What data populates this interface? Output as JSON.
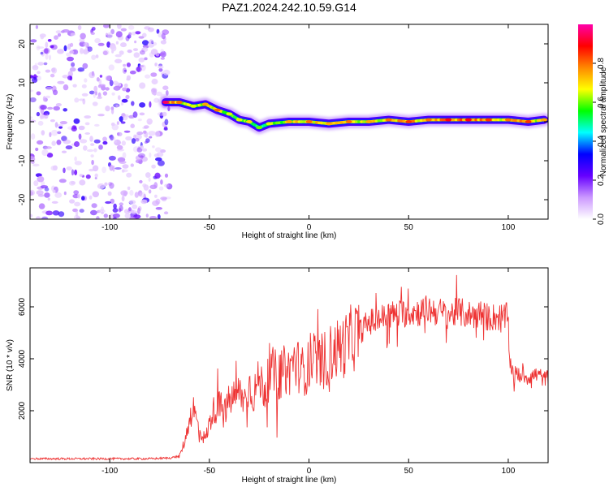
{
  "title": "PAZ1.2024.242.10.59.G14",
  "chart_data": [
    {
      "type": "heatmap",
      "xlabel": "Height of straight line (km)",
      "ylabel": "Frequency (Hz)",
      "xlim": [
        -140,
        120
      ],
      "ylim": [
        -25,
        25
      ],
      "xticks": [
        -100,
        -50,
        0,
        50,
        100
      ],
      "yticks": [
        20,
        10,
        0,
        -10,
        -20
      ],
      "colorbar": {
        "label": "Normalized spectral amplitude",
        "range": [
          0,
          1
        ],
        "ticks": [
          0.0,
          0.2,
          0.4,
          0.6,
          0.8
        ],
        "tick_labels": [
          "0.0",
          "0.2",
          "0.4",
          "0.6",
          "0.8"
        ],
        "colormap": [
          "#ffffff",
          "#cc99ff",
          "#6600ff",
          "#0000ff",
          "#00ffff",
          "#00ff00",
          "#ffff00",
          "#ff8800",
          "#ff0000",
          "#ff00aa"
        ]
      },
      "noise_region": {
        "x_range": [
          -140,
          -70
        ],
        "amplitude": "low (0.1-0.3)"
      },
      "ridge": [
        {
          "x": -72,
          "y": 5,
          "amp": 0.9
        },
        {
          "x": -65,
          "y": 5,
          "amp": 0.75
        },
        {
          "x": -58,
          "y": 4,
          "amp": 0.6
        },
        {
          "x": -52,
          "y": 4.5,
          "amp": 0.7
        },
        {
          "x": -46,
          "y": 3,
          "amp": 0.75
        },
        {
          "x": -40,
          "y": 2,
          "amp": 0.6
        },
        {
          "x": -35,
          "y": 0.5,
          "amp": 0.6
        },
        {
          "x": -30,
          "y": 0,
          "amp": 0.65
        },
        {
          "x": -25,
          "y": -1.5,
          "amp": 0.55
        },
        {
          "x": -20,
          "y": -0.5,
          "amp": 0.6
        },
        {
          "x": -10,
          "y": 0,
          "amp": 0.7
        },
        {
          "x": 0,
          "y": 0,
          "amp": 0.75
        },
        {
          "x": 10,
          "y": -0.5,
          "amp": 0.7
        },
        {
          "x": 20,
          "y": 0,
          "amp": 0.75
        },
        {
          "x": 30,
          "y": 0,
          "amp": 0.7
        },
        {
          "x": 40,
          "y": 0.5,
          "amp": 0.75
        },
        {
          "x": 50,
          "y": 0,
          "amp": 0.8
        },
        {
          "x": 60,
          "y": 0.5,
          "amp": 0.75
        },
        {
          "x": 70,
          "y": 0.5,
          "amp": 0.85
        },
        {
          "x": 80,
          "y": 0.5,
          "amp": 0.85
        },
        {
          "x": 90,
          "y": 0.5,
          "amp": 0.8
        },
        {
          "x": 100,
          "y": 0.5,
          "amp": 0.75
        },
        {
          "x": 110,
          "y": 0,
          "amp": 0.8
        },
        {
          "x": 118,
          "y": 0.5,
          "amp": 0.7
        }
      ]
    },
    {
      "type": "line",
      "xlabel": "Height of straight line (km)",
      "ylabel": "SNR (10 * v/v)",
      "xlim": [
        -140,
        120
      ],
      "ylim": [
        0,
        7500
      ],
      "xticks": [
        -100,
        -50,
        0,
        50,
        100
      ],
      "yticks": [
        2000,
        4000,
        6000
      ],
      "color": "#ee3333",
      "series": [
        {
          "x": [
            -140,
            -120,
            -100,
            -80,
            -70,
            -65,
            -62,
            -60,
            -58,
            -55,
            -52,
            -50,
            -48,
            -45,
            -42,
            -40,
            -38,
            -35,
            -32,
            -30,
            -28,
            -25,
            -22,
            -20,
            -18,
            -15,
            -12,
            -10,
            -8,
            -5,
            -3,
            0,
            3,
            5,
            8,
            10,
            12,
            15,
            18,
            20,
            25,
            30,
            35,
            40,
            45,
            50,
            55,
            60,
            65,
            70,
            75,
            80,
            85,
            90,
            95,
            100,
            101,
            103,
            105,
            110,
            115,
            118,
            120
          ],
          "y": [
            150,
            150,
            150,
            150,
            180,
            250,
            900,
            1700,
            2100,
            1200,
            900,
            1500,
            2000,
            2200,
            2000,
            2400,
            2500,
            2700,
            2400,
            3000,
            2600,
            3200,
            2800,
            3300,
            3500,
            3300,
            3600,
            3500,
            3900,
            3700,
            3500,
            3700,
            4000,
            3800,
            4000,
            4100,
            4300,
            4400,
            4500,
            4700,
            5000,
            5400,
            5500,
            5700,
            5700,
            5800,
            5800,
            5900,
            5800,
            5700,
            5800,
            5700,
            5700,
            5600,
            5600,
            5600,
            3800,
            3400,
            3400,
            3300,
            3400,
            3200,
            3300
          ]
        }
      ]
    }
  ]
}
